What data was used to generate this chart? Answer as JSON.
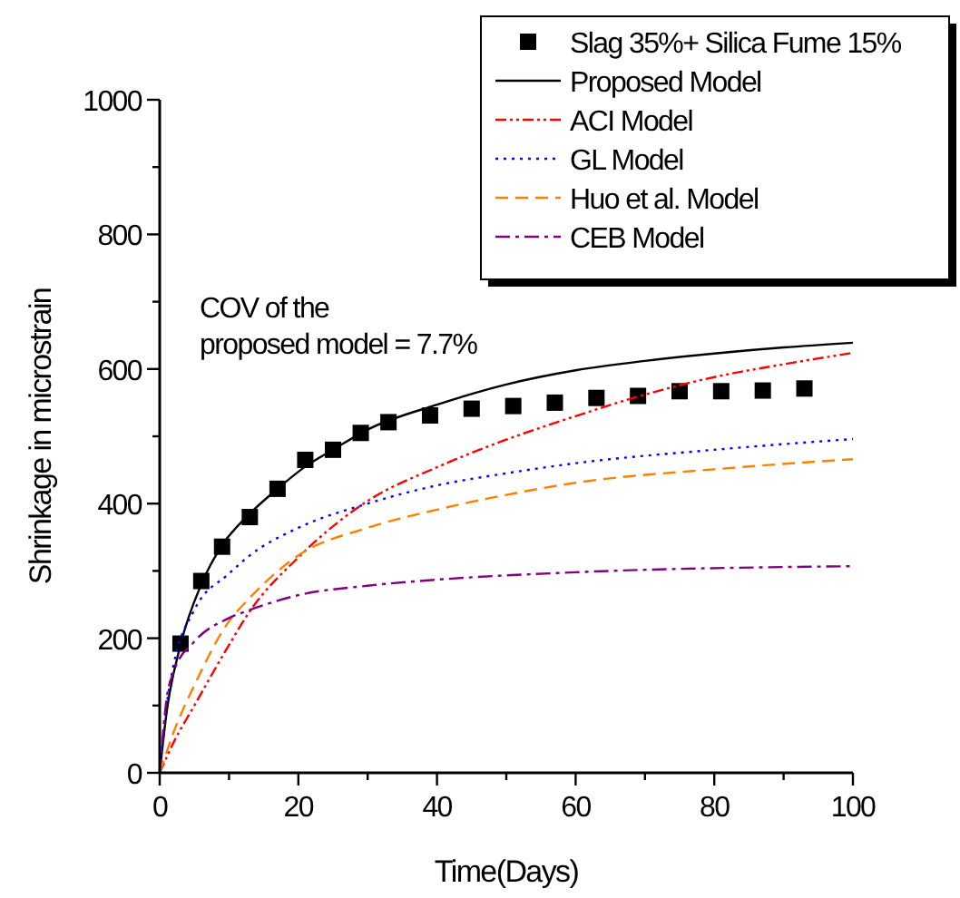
{
  "chart_data": {
    "type": "line",
    "xlabel": "Time(Days)",
    "ylabel": "Shrinkage in microstrain",
    "xlim": [
      0,
      100
    ],
    "ylim": [
      0,
      1000
    ],
    "xticks": [
      0,
      {
        "value": 10,
        "label": null
      },
      20,
      {
        "value": 30,
        "label": null
      },
      40,
      {
        "value": 50,
        "label": null
      },
      60,
      {
        "value": 70,
        "label": null
      },
      80,
      {
        "value": 90,
        "label": null
      },
      100
    ],
    "yticks": [
      0,
      {
        "value": 100,
        "label": null
      },
      200,
      {
        "value": 300,
        "label": null
      },
      400,
      {
        "value": 500,
        "label": null
      },
      600,
      {
        "value": 700,
        "label": null
      },
      800,
      {
        "value": 900,
        "label": null
      },
      1000
    ],
    "legend": "top right",
    "grid": false,
    "annotations": [
      "COV of the\nproposed model = 7.7%"
    ],
    "series": [
      {
        "name": "Slag 35%+ Silica Fume 15%",
        "type": "scatter",
        "marker": "square",
        "color": "#000000",
        "x": [
          3,
          6,
          9,
          13,
          17,
          21,
          25,
          29,
          33,
          39,
          45,
          51,
          57,
          63,
          69,
          75,
          81,
          87,
          93
        ],
        "values": [
          192,
          285,
          336,
          380,
          422,
          465,
          480,
          505,
          521,
          531,
          541,
          545,
          550,
          557,
          560,
          567,
          567,
          568,
          571
        ]
      },
      {
        "name": "Proposed Model",
        "line_style": "solid",
        "color": "#000000",
        "x": [
          0,
          1,
          3,
          6,
          9,
          13,
          17,
          21,
          25,
          30,
          40,
          50,
          60,
          70,
          80,
          90,
          100
        ],
        "values": [
          0,
          90,
          190,
          280,
          338,
          385,
          422,
          455,
          480,
          510,
          547,
          577,
          598,
          612,
          623,
          632,
          639
        ]
      },
      {
        "name": "ACI Model",
        "line_style": "dashdotdot",
        "color": "#ff0000",
        "x": [
          0,
          2,
          5,
          10,
          13,
          20,
          30,
          40,
          50,
          60,
          70,
          80,
          90,
          100
        ],
        "values": [
          0,
          45,
          100,
          190,
          240,
          320,
          404,
          454,
          495,
          530,
          562,
          588,
          607,
          624
        ]
      },
      {
        "name": "GL Model",
        "line_style": "dotted",
        "color": "#0000ff",
        "x": [
          0,
          1,
          2,
          5,
          10,
          13,
          20,
          30,
          40,
          50,
          60,
          80,
          100
        ],
        "values": [
          0,
          100,
          160,
          242,
          296,
          323,
          364,
          400,
          427,
          445,
          460,
          480,
          496
        ]
      },
      {
        "name": "Huo et al. Model",
        "line_style": "dashed",
        "color": "#ff8000",
        "x": [
          0,
          2,
          5,
          10,
          13,
          20,
          30,
          40,
          50,
          60,
          80,
          100
        ],
        "values": [
          0,
          60,
          130,
          225,
          260,
          323,
          364,
          391,
          413,
          431,
          451,
          466
        ]
      },
      {
        "name": "CEB Model",
        "line_style": "dashdot",
        "color": "#800080",
        "x": [
          0,
          1,
          2,
          5,
          10,
          13,
          20,
          30,
          40,
          60,
          100
        ],
        "values": [
          0,
          110,
          150,
          195,
          230,
          242,
          264,
          278,
          287,
          298,
          307
        ]
      }
    ]
  }
}
